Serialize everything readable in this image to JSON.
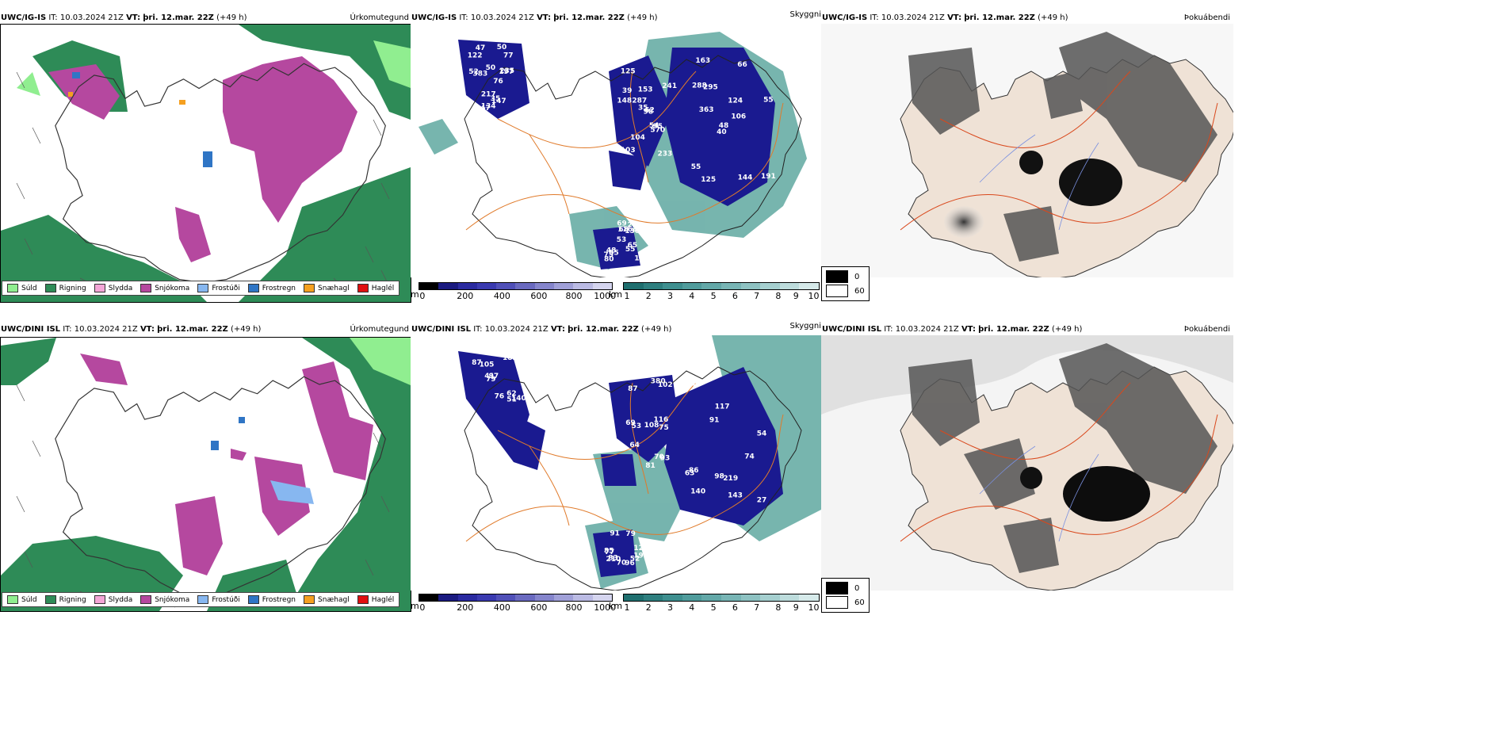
{
  "rows": [
    {
      "model": "UWC/IG-IS",
      "it_label": "IT:",
      "it_value": "10.03.2024 21Z",
      "vt_label": "VT:",
      "vt_value": "þri. 12.mar. 22Z",
      "lead": "(+49 h)",
      "precip_title": "Úrkomutegund",
      "cloud_title": "Skyggni",
      "fog_title": "Þokuábendi",
      "visibility_labels": [
        "76",
        "39",
        "48",
        "75",
        "197",
        "104",
        "66",
        "68",
        "77",
        "98",
        "163",
        "153",
        "383",
        "241",
        "40",
        "130",
        "147",
        "153",
        "124",
        "48",
        "50",
        "103",
        "125",
        "116",
        "235",
        "95",
        "288",
        "69",
        "52",
        "54",
        "55",
        "53",
        "35",
        "35",
        "295",
        "230",
        "217",
        "233",
        "191",
        "65",
        "50",
        "287",
        "363",
        "55",
        "134",
        "148",
        "106",
        "80",
        "147",
        "62",
        "55",
        "40",
        "122",
        "570",
        "144",
        "55",
        "47",
        "125"
      ]
    },
    {
      "model": "UWC/DINI ISL",
      "it_label": "IT:",
      "it_value": "10.03.2024 21Z",
      "vt_label": "VT:",
      "vt_value": "þri. 12.mar. 22Z",
      "lead": "(+49 h)",
      "precip_title": "Úrkomutegund",
      "cloud_title": "Skyggni",
      "fog_title": "Þokuábendi",
      "visibility_labels": [
        "62",
        "75",
        "140",
        "91",
        "97",
        "70",
        "86",
        "79",
        "41",
        "81",
        "76",
        "85",
        "87",
        "93",
        "98",
        "127",
        "76",
        "108",
        "117",
        "83",
        "64",
        "102",
        "91",
        "192",
        "183",
        "87",
        "74",
        "77",
        "105",
        "116",
        "143",
        "96",
        "79",
        "53",
        "54",
        "52",
        "51",
        "69",
        "219",
        "210",
        "23",
        "380",
        "27",
        "70",
        "140",
        "64",
        "63"
      ]
    }
  ],
  "precip_legend": [
    {
      "label": "Súld",
      "color": "#90ee90"
    },
    {
      "label": "Rigning",
      "color": "#2e8b57"
    },
    {
      "label": "Slydda",
      "color": "#f4a6d7"
    },
    {
      "label": "Snjókoma",
      "color": "#b5489f"
    },
    {
      "label": "Frostúði",
      "color": "#87b7f0"
    },
    {
      "label": "Frostregn",
      "color": "#2f75c5"
    },
    {
      "label": "Snæhagl",
      "color": "#f5a020"
    },
    {
      "label": "Haglél",
      "color": "#e01010"
    }
  ],
  "vis_colorbar": {
    "unit_m": "m",
    "unit_km": "km",
    "m_ticks": [
      "0",
      "200",
      "400",
      "600",
      "800",
      "1000"
    ],
    "km_ticks": [
      "1",
      "2",
      "3",
      "4",
      "5",
      "6",
      "7",
      "8",
      "9",
      "10"
    ],
    "m_colors": [
      "#000000",
      "#1a1a80",
      "#2a2aa0",
      "#3a3ab0",
      "#5050b8",
      "#6a6ac0",
      "#8585cc",
      "#a0a0d8",
      "#bbbbe4",
      "#d5d5ef"
    ],
    "km_colors": [
      "#1f6f6f",
      "#2e7f7f",
      "#3e8f8f",
      "#509c9c",
      "#63a8a8",
      "#78b5b5",
      "#8ec2c2",
      "#a5cfcf",
      "#bddcdc",
      "#d6eaea",
      "#ffffff"
    ]
  },
  "fog_legend": [
    {
      "label": "0",
      "color": "#000000"
    },
    {
      "label": "60",
      "color": "#ffffff"
    }
  ],
  "colors": {
    "land_fog": "#efe2d6",
    "roads": "#e0501f",
    "rivers": "#6b86e0",
    "rain": "#2e8b57",
    "snow": "#b5489f",
    "vis_dark": "#1a1a90",
    "vis_teal": "#5fa8a0"
  }
}
